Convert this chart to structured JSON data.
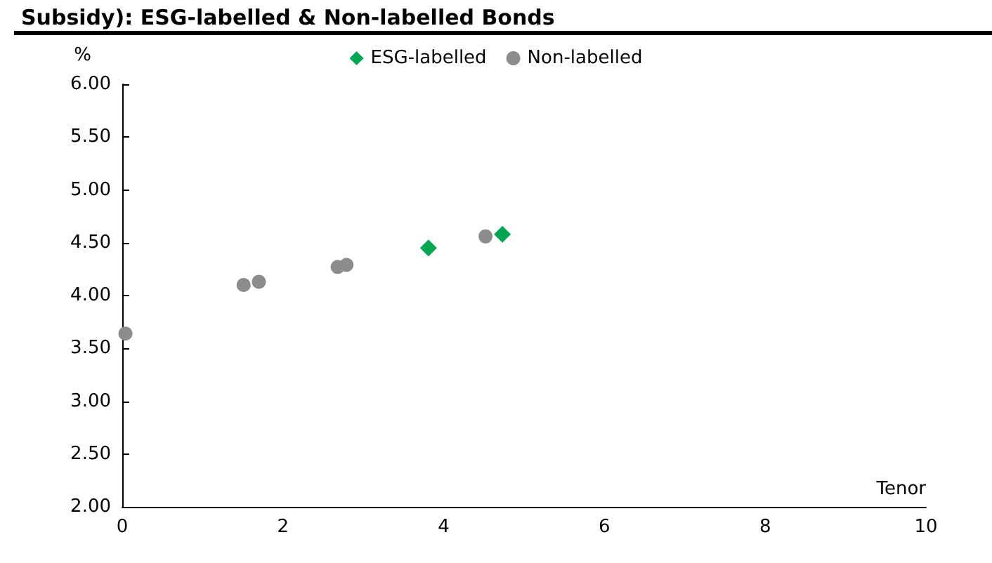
{
  "chart_data": {
    "type": "scatter",
    "title": "Subsidy): ESG-labelled & Non-labelled Bonds",
    "xlabel": "Tenor",
    "ylabel": "%",
    "series": [
      {
        "name": "ESG-labelled",
        "color": "#00a651",
        "marker": "diamond",
        "x": [
          3.81,
          4.73
        ],
        "values": [
          4.45,
          4.58
        ]
      },
      {
        "name": "Non-labelled",
        "color": "#8c8c8c",
        "marker": "circle",
        "x": [
          0.04,
          1.51,
          1.7,
          2.68,
          2.79,
          4.52
        ],
        "values": [
          3.64,
          4.1,
          4.13,
          4.27,
          4.29,
          4.56
        ]
      }
    ],
    "xlim": [
      0,
      10
    ],
    "xticks": [
      0,
      2,
      4,
      6,
      8,
      10
    ],
    "ylim": [
      2,
      6
    ],
    "yticks": [
      {
        "value": 2,
        "label": "2.00"
      },
      {
        "value": 2.5,
        "label": "2.50"
      },
      {
        "value": 3,
        "label": "3.00"
      },
      {
        "value": 3.5,
        "label": "3.50"
      },
      {
        "value": 4,
        "label": "4.00"
      },
      {
        "value": 4.5,
        "label": "4.50"
      },
      {
        "value": 5,
        "label": "5.00"
      },
      {
        "value": 5.5,
        "label": "5.50"
      },
      {
        "value": 6,
        "label": "6.00"
      }
    ],
    "grid": false,
    "legend": "top"
  }
}
